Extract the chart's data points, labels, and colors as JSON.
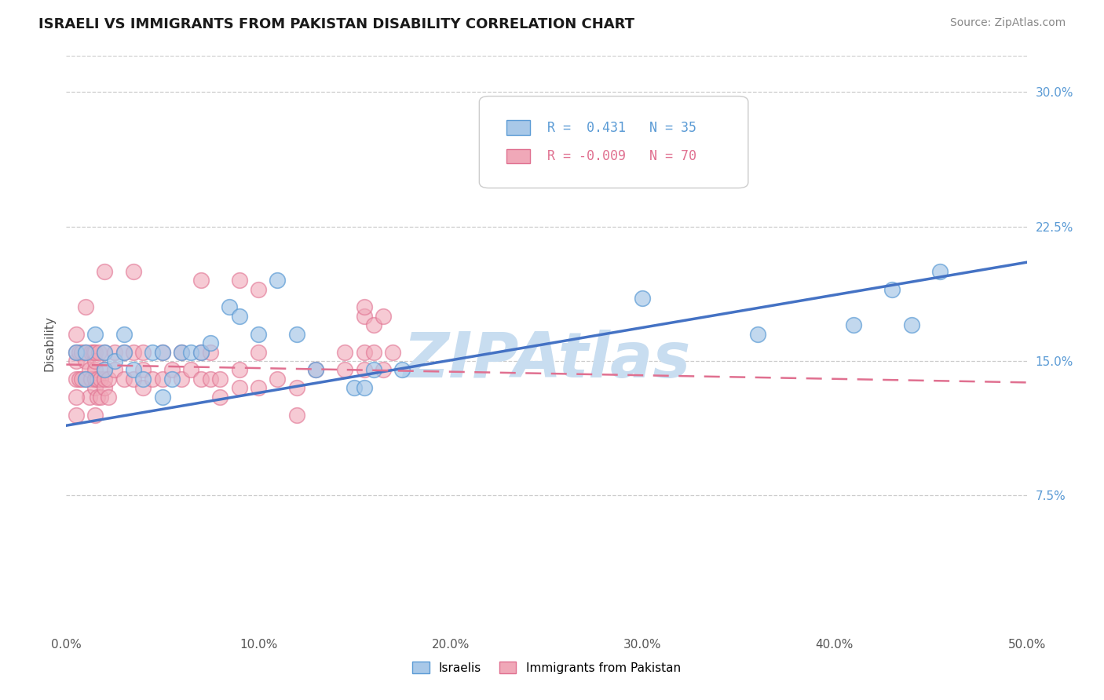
{
  "title": "ISRAELI VS IMMIGRANTS FROM PAKISTAN DISABILITY CORRELATION CHART",
  "source_text": "Source: ZipAtlas.com",
  "ylabel": "Disability",
  "xlim": [
    0.0,
    0.5
  ],
  "ylim": [
    0.0,
    0.32
  ],
  "xticks": [
    0.0,
    0.1,
    0.2,
    0.3,
    0.4,
    0.5
  ],
  "xtick_labels": [
    "0.0%",
    "10.0%",
    "20.0%",
    "30.0%",
    "40.0%",
    "50.0%"
  ],
  "yticks_right": [
    0.075,
    0.15,
    0.225,
    0.3
  ],
  "ytick_labels_right": [
    "7.5%",
    "15.0%",
    "22.5%",
    "30.0%"
  ],
  "legend_r1": "R =  0.431   N = 35",
  "legend_r2": "R = -0.009   N = 70",
  "color_blue": "#a8c8e8",
  "color_pink": "#f0a8b8",
  "color_blue_edge": "#5b9bd5",
  "color_pink_edge": "#e07090",
  "color_blue_line": "#4472c4",
  "color_pink_line": "#c0508080",
  "watermark": "ZIPAtlas",
  "watermark_color": "#c8ddf0",
  "israelis_x": [
    0.005,
    0.01,
    0.01,
    0.015,
    0.02,
    0.02,
    0.025,
    0.03,
    0.03,
    0.035,
    0.04,
    0.045,
    0.05,
    0.05,
    0.055,
    0.06,
    0.065,
    0.07,
    0.075,
    0.085,
    0.09,
    0.1,
    0.11,
    0.12,
    0.13,
    0.15,
    0.155,
    0.16,
    0.175,
    0.3,
    0.36,
    0.41,
    0.43,
    0.44,
    0.455
  ],
  "israelis_y": [
    0.155,
    0.14,
    0.155,
    0.165,
    0.145,
    0.155,
    0.15,
    0.155,
    0.165,
    0.145,
    0.14,
    0.155,
    0.13,
    0.155,
    0.14,
    0.155,
    0.155,
    0.155,
    0.16,
    0.18,
    0.175,
    0.165,
    0.195,
    0.165,
    0.145,
    0.135,
    0.135,
    0.145,
    0.145,
    0.185,
    0.165,
    0.17,
    0.19,
    0.17,
    0.2
  ],
  "pakistan_x": [
    0.005,
    0.005,
    0.005,
    0.005,
    0.007,
    0.007,
    0.008,
    0.008,
    0.01,
    0.01,
    0.01,
    0.012,
    0.012,
    0.013,
    0.013,
    0.014,
    0.015,
    0.015,
    0.015,
    0.015,
    0.015,
    0.015,
    0.016,
    0.016,
    0.017,
    0.018,
    0.018,
    0.02,
    0.02,
    0.02,
    0.02,
    0.022,
    0.022,
    0.025,
    0.025,
    0.03,
    0.03,
    0.035,
    0.035,
    0.04,
    0.04,
    0.04,
    0.045,
    0.05,
    0.05,
    0.055,
    0.06,
    0.06,
    0.065,
    0.07,
    0.07,
    0.075,
    0.075,
    0.08,
    0.08,
    0.09,
    0.09,
    0.1,
    0.1,
    0.11,
    0.12,
    0.12,
    0.13,
    0.145,
    0.145,
    0.155,
    0.155,
    0.16,
    0.165,
    0.17
  ],
  "pakistan_y": [
    0.14,
    0.15,
    0.155,
    0.165,
    0.14,
    0.155,
    0.14,
    0.155,
    0.14,
    0.15,
    0.155,
    0.13,
    0.145,
    0.155,
    0.14,
    0.155,
    0.12,
    0.135,
    0.14,
    0.145,
    0.15,
    0.155,
    0.13,
    0.14,
    0.155,
    0.13,
    0.14,
    0.135,
    0.14,
    0.145,
    0.155,
    0.13,
    0.14,
    0.145,
    0.155,
    0.14,
    0.155,
    0.14,
    0.155,
    0.135,
    0.145,
    0.155,
    0.14,
    0.14,
    0.155,
    0.145,
    0.14,
    0.155,
    0.145,
    0.14,
    0.155,
    0.14,
    0.155,
    0.13,
    0.14,
    0.135,
    0.145,
    0.135,
    0.155,
    0.14,
    0.12,
    0.135,
    0.145,
    0.155,
    0.145,
    0.155,
    0.145,
    0.155,
    0.145,
    0.155
  ],
  "pakistan_outliers_x": [
    0.005,
    0.005,
    0.01,
    0.02,
    0.035,
    0.07,
    0.09,
    0.1,
    0.155,
    0.155,
    0.16,
    0.165
  ],
  "pakistan_outliers_y": [
    0.12,
    0.13,
    0.18,
    0.2,
    0.2,
    0.195,
    0.195,
    0.19,
    0.175,
    0.18,
    0.17,
    0.175
  ]
}
